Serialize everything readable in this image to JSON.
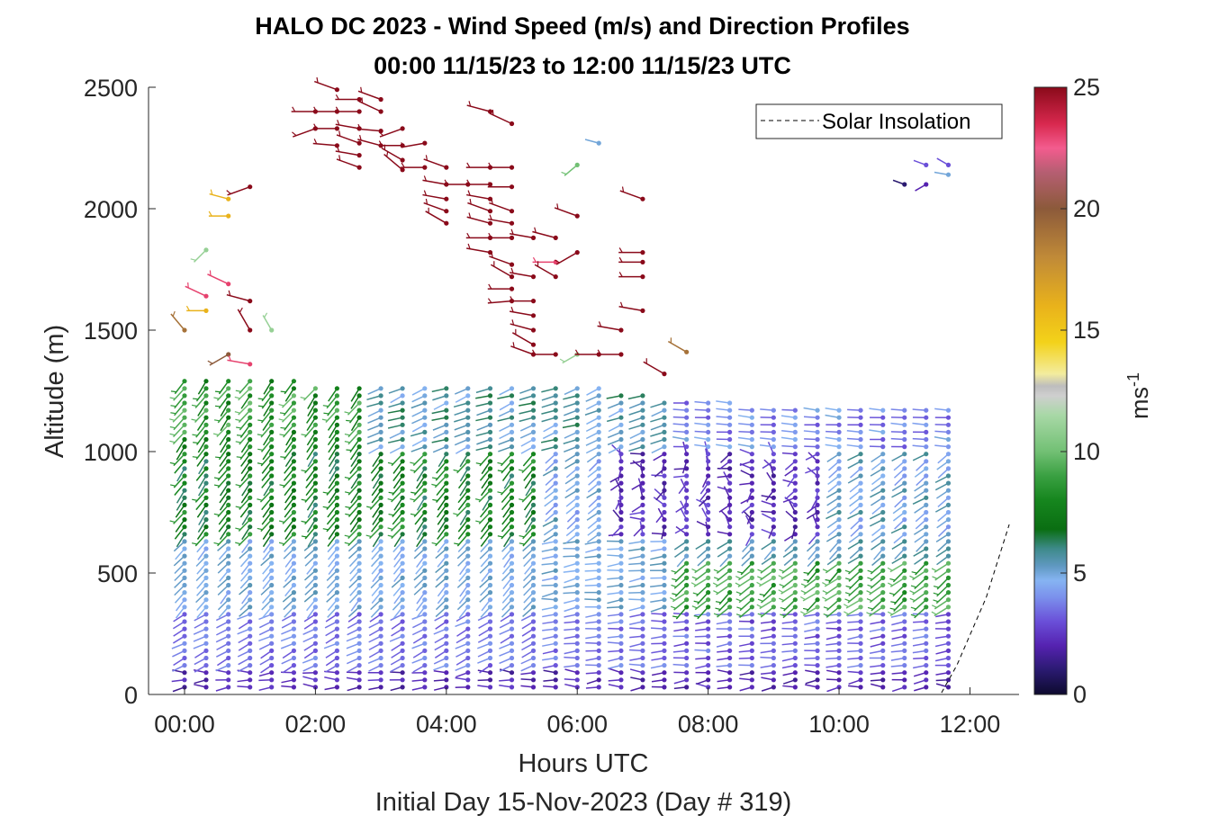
{
  "chart_data": {
    "type": "scatter",
    "subtype": "wind-barb profile",
    "title_line1": "HALO DC 2023 - Wind Speed (m/s) and Direction Profiles",
    "title_line2": "00:00 11/15/23 to 12:00 11/15/23  UTC",
    "xlabel": "Hours UTC",
    "xlabel2": "Initial Day 15-Nov-2023 (Day # 319)",
    "ylabel": "Altitude (m)",
    "xlim": [
      -0.55,
      12.75
    ],
    "ylim": [
      0,
      2500
    ],
    "xticks": [
      0,
      2,
      4,
      6,
      8,
      10,
      12
    ],
    "xtick_labels": [
      "00:00",
      "02:00",
      "04:00",
      "06:00",
      "08:00",
      "10:00",
      "12:00"
    ],
    "yticks": [
      0,
      500,
      1000,
      1500,
      2000,
      2500
    ],
    "ytick_labels": [
      "0",
      "500",
      "1000",
      "1500",
      "2000",
      "2500"
    ],
    "colorbar": {
      "label": "ms",
      "label_superscript": "-1",
      "range": [
        0,
        25
      ],
      "ticks": [
        0,
        5,
        10,
        15,
        20,
        25
      ],
      "tick_labels": [
        "0",
        "5",
        "10",
        "15",
        "20",
        "25"
      ],
      "stops": [
        [
          0,
          "#0d0a2e"
        ],
        [
          1,
          "#2a1a70"
        ],
        [
          2,
          "#5522b0"
        ],
        [
          3,
          "#6a4fd8"
        ],
        [
          4,
          "#7b90ec"
        ],
        [
          4.7,
          "#86b4f2"
        ],
        [
          5.3,
          "#5f98c0"
        ],
        [
          6,
          "#3e8a8a"
        ],
        [
          6.8,
          "#0a6e12"
        ],
        [
          8,
          "#16861e"
        ],
        [
          9,
          "#3aa042"
        ],
        [
          10,
          "#72c074"
        ],
        [
          11.5,
          "#a8d8a6"
        ],
        [
          12.3,
          "#cfcfcf"
        ],
        [
          12.7,
          "#bdbdbd"
        ],
        [
          13.2,
          "#f3ec9e"
        ],
        [
          14.5,
          "#f3d21a"
        ],
        [
          16,
          "#e9b21b"
        ],
        [
          18,
          "#c08a38"
        ],
        [
          20,
          "#8c5a3a"
        ],
        [
          21.5,
          "#b55e72"
        ],
        [
          22.5,
          "#f35c8e"
        ],
        [
          23.5,
          "#d8284e"
        ],
        [
          25,
          "#8a0a1a"
        ]
      ]
    },
    "legend": {
      "entries": [
        "Solar Insolation"
      ],
      "location": "top-right",
      "style": "dashed black line"
    },
    "solar_insolation": {
      "x": [
        -0.55,
        11.55,
        11.8,
        12.25,
        12.6
      ],
      "y": [
        0,
        0,
        120,
        400,
        700
      ]
    },
    "profile_times": [
      0.0,
      0.33,
      0.67,
      1.0,
      1.33,
      1.67,
      2.0,
      2.33,
      2.67,
      3.0,
      3.33,
      3.67,
      4.0,
      4.33,
      4.67,
      5.0,
      5.33,
      5.67,
      6.0,
      6.33,
      6.67,
      7.0,
      7.33,
      7.67,
      8.0,
      8.33,
      8.67,
      9.0,
      9.33,
      9.67,
      10.0,
      10.33,
      10.67,
      11.0,
      11.33,
      11.67
    ],
    "altitude_levels": [
      30,
      60,
      90,
      120,
      150,
      180,
      210,
      240,
      270,
      300,
      330,
      360,
      390,
      420,
      450,
      480,
      510,
      540,
      570,
      600,
      630,
      660,
      690,
      720,
      750,
      780,
      810,
      840,
      870,
      900,
      930,
      960,
      990,
      1020,
      1050,
      1080,
      1110,
      1140,
      1170,
      1200,
      1230,
      1260,
      1290
    ],
    "boundary_layer_top_m": [
      1310,
      1310,
      1300,
      1290,
      1290,
      1290,
      1280,
      1280,
      1280,
      1280,
      1280,
      1270,
      1270,
      1270,
      1270,
      1270,
      1260,
      1260,
      1260,
      1260,
      1250,
      1240,
      1220,
      1210,
      1200,
      1200,
      1190,
      1180,
      1180,
      1170,
      1170,
      1180,
      1180,
      1190,
      1190,
      1190
    ],
    "upper_barbs": [
      {
        "t": 0.0,
        "z": 1500,
        "speed": 19,
        "dir": 320
      },
      {
        "t": 0.33,
        "z": 1640,
        "speed": 23,
        "dir": 295
      },
      {
        "t": 0.33,
        "z": 1580,
        "speed": 16,
        "dir": 270
      },
      {
        "t": 0.33,
        "z": 1830,
        "speed": 11,
        "dir": 225
      },
      {
        "t": 0.67,
        "z": 2040,
        "speed": 16,
        "dir": 285
      },
      {
        "t": 0.67,
        "z": 1970,
        "speed": 16,
        "dir": 270
      },
      {
        "t": 0.67,
        "z": 1690,
        "speed": 23,
        "dir": 295
      },
      {
        "t": 0.67,
        "z": 1400,
        "speed": 20,
        "dir": 240
      },
      {
        "t": 1.0,
        "z": 2090,
        "speed": 25,
        "dir": 250
      },
      {
        "t": 1.0,
        "z": 1620,
        "speed": 25,
        "dir": 285
      },
      {
        "t": 1.0,
        "z": 1500,
        "speed": 25,
        "dir": 330
      },
      {
        "t": 1.33,
        "z": 1500,
        "speed": 11,
        "dir": 330
      },
      {
        "t": 1.0,
        "z": 1360,
        "speed": 23,
        "dir": 280
      },
      {
        "t": 2.0,
        "z": 2400,
        "speed": 25,
        "dir": 270
      },
      {
        "t": 2.0,
        "z": 2330,
        "speed": 25,
        "dir": 250
      },
      {
        "t": 2.33,
        "z": 2490,
        "speed": 25,
        "dir": 290
      },
      {
        "t": 2.33,
        "z": 2400,
        "speed": 25,
        "dir": 270
      },
      {
        "t": 2.33,
        "z": 2330,
        "speed": 25,
        "dir": 270
      },
      {
        "t": 2.33,
        "z": 2260,
        "speed": 25,
        "dir": 275
      },
      {
        "t": 2.67,
        "z": 2450,
        "speed": 25,
        "dir": 270
      },
      {
        "t": 2.67,
        "z": 2400,
        "speed": 25,
        "dir": 270
      },
      {
        "t": 2.67,
        "z": 2330,
        "speed": 25,
        "dir": 280
      },
      {
        "t": 2.67,
        "z": 2270,
        "speed": 25,
        "dir": 290
      },
      {
        "t": 2.67,
        "z": 2220,
        "speed": 25,
        "dir": 280
      },
      {
        "t": 2.67,
        "z": 2170,
        "speed": 25,
        "dir": 290
      },
      {
        "t": 3.0,
        "z": 2450,
        "speed": 25,
        "dir": 290
      },
      {
        "t": 3.0,
        "z": 2400,
        "speed": 25,
        "dir": 295
      },
      {
        "t": 3.0,
        "z": 2320,
        "speed": 25,
        "dir": 275
      },
      {
        "t": 3.0,
        "z": 2260,
        "speed": 25,
        "dir": 285
      },
      {
        "t": 3.33,
        "z": 2330,
        "speed": 25,
        "dir": 250
      },
      {
        "t": 3.33,
        "z": 2260,
        "speed": 25,
        "dir": 270
      },
      {
        "t": 3.33,
        "z": 2200,
        "speed": 25,
        "dir": 300
      },
      {
        "t": 3.33,
        "z": 2160,
        "speed": 25,
        "dir": 310
      },
      {
        "t": 3.67,
        "z": 2270,
        "speed": 25,
        "dir": 260
      },
      {
        "t": 3.67,
        "z": 2170,
        "speed": 25,
        "dir": 270
      },
      {
        "t": 4.0,
        "z": 2170,
        "speed": 25,
        "dir": 290
      },
      {
        "t": 4.0,
        "z": 2100,
        "speed": 25,
        "dir": 280
      },
      {
        "t": 4.0,
        "z": 2040,
        "speed": 25,
        "dir": 280
      },
      {
        "t": 4.0,
        "z": 1990,
        "speed": 25,
        "dir": 290
      },
      {
        "t": 4.0,
        "z": 1940,
        "speed": 25,
        "dir": 300
      },
      {
        "t": 4.33,
        "z": 2100,
        "speed": 25,
        "dir": 270
      },
      {
        "t": 4.67,
        "z": 2400,
        "speed": 25,
        "dir": 285
      },
      {
        "t": 4.67,
        "z": 2170,
        "speed": 25,
        "dir": 270
      },
      {
        "t": 4.67,
        "z": 2100,
        "speed": 25,
        "dir": 270
      },
      {
        "t": 4.67,
        "z": 2040,
        "speed": 25,
        "dir": 280
      },
      {
        "t": 4.67,
        "z": 1990,
        "speed": 25,
        "dir": 290
      },
      {
        "t": 4.67,
        "z": 1940,
        "speed": 25,
        "dir": 285
      },
      {
        "t": 4.67,
        "z": 1880,
        "speed": 25,
        "dir": 270
      },
      {
        "t": 4.67,
        "z": 1820,
        "speed": 25,
        "dir": 280
      },
      {
        "t": 5.0,
        "z": 2350,
        "speed": 25,
        "dir": 295
      },
      {
        "t": 5.0,
        "z": 2170,
        "speed": 25,
        "dir": 270
      },
      {
        "t": 5.0,
        "z": 2090,
        "speed": 25,
        "dir": 270
      },
      {
        "t": 5.0,
        "z": 1990,
        "speed": 25,
        "dir": 290
      },
      {
        "t": 5.0,
        "z": 1940,
        "speed": 25,
        "dir": 280
      },
      {
        "t": 5.0,
        "z": 1880,
        "speed": 25,
        "dir": 270
      },
      {
        "t": 5.0,
        "z": 1770,
        "speed": 25,
        "dir": 290
      },
      {
        "t": 5.0,
        "z": 1720,
        "speed": 25,
        "dir": 300
      },
      {
        "t": 5.0,
        "z": 1670,
        "speed": 25,
        "dir": 270
      },
      {
        "t": 5.0,
        "z": 1620,
        "speed": 25,
        "dir": 265
      },
      {
        "t": 5.33,
        "z": 1880,
        "speed": 25,
        "dir": 280
      },
      {
        "t": 5.33,
        "z": 1720,
        "speed": 25,
        "dir": 280
      },
      {
        "t": 5.33,
        "z": 1620,
        "speed": 25,
        "dir": 270
      },
      {
        "t": 5.33,
        "z": 1560,
        "speed": 25,
        "dir": 280
      },
      {
        "t": 5.33,
        "z": 1500,
        "speed": 25,
        "dir": 285
      },
      {
        "t": 5.33,
        "z": 1440,
        "speed": 25,
        "dir": 300
      },
      {
        "t": 5.33,
        "z": 1400,
        "speed": 25,
        "dir": 290
      },
      {
        "t": 5.67,
        "z": 1880,
        "speed": 25,
        "dir": 285
      },
      {
        "t": 5.67,
        "z": 1780,
        "speed": 23,
        "dir": 270
      },
      {
        "t": 5.67,
        "z": 1720,
        "speed": 25,
        "dir": 300
      },
      {
        "t": 6.0,
        "z": 1400,
        "speed": 11,
        "dir": 240
      },
      {
        "t": 6.0,
        "z": 1820,
        "speed": 25,
        "dir": 240
      },
      {
        "t": 5.67,
        "z": 1400,
        "speed": 25,
        "dir": 270
      },
      {
        "t": 6.0,
        "z": 2180,
        "speed": 10,
        "dir": 230
      },
      {
        "t": 6.33,
        "z": 2270,
        "speed": 5,
        "dir": 285
      },
      {
        "t": 6.0,
        "z": 1970,
        "speed": 25,
        "dir": 290
      },
      {
        "t": 6.33,
        "z": 1400,
        "speed": 25,
        "dir": 270
      },
      {
        "t": 6.67,
        "z": 1500,
        "speed": 25,
        "dir": 280
      },
      {
        "t": 6.67,
        "z": 1400,
        "speed": 25,
        "dir": 270
      },
      {
        "t": 7.0,
        "z": 2040,
        "speed": 25,
        "dir": 290
      },
      {
        "t": 7.0,
        "z": 1820,
        "speed": 25,
        "dir": 270
      },
      {
        "t": 7.0,
        "z": 1780,
        "speed": 25,
        "dir": 270
      },
      {
        "t": 7.0,
        "z": 1720,
        "speed": 25,
        "dir": 270
      },
      {
        "t": 7.0,
        "z": 1580,
        "speed": 25,
        "dir": 280
      },
      {
        "t": 7.67,
        "z": 1410,
        "speed": 19,
        "dir": 300
      },
      {
        "t": 7.33,
        "z": 1320,
        "speed": 25,
        "dir": 300
      },
      {
        "t": 11.0,
        "z": 2100,
        "speed": 1,
        "dir": 290
      },
      {
        "t": 11.33,
        "z": 2180,
        "speed": 3,
        "dir": 290
      },
      {
        "t": 11.33,
        "z": 2100,
        "speed": 2,
        "dir": 240
      },
      {
        "t": 11.67,
        "z": 2180,
        "speed": 3,
        "dir": 300
      },
      {
        "t": 11.67,
        "z": 2140,
        "speed": 5,
        "dir": 280
      }
    ]
  }
}
